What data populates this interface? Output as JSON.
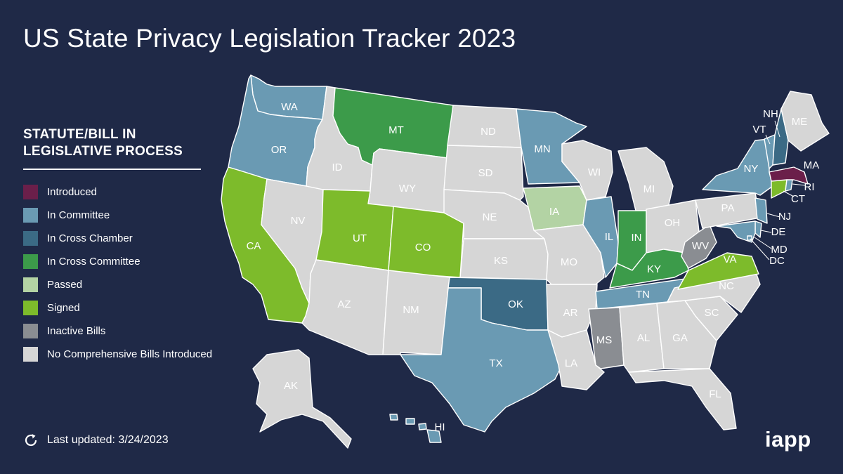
{
  "title": "US State Privacy Legislation Tracker 2023",
  "legend": {
    "heading_line1": "STATUTE/BILL IN",
    "heading_line2": "LEGISLATIVE PROCESS",
    "items": [
      {
        "label": "Introduced",
        "color": "#6b1f4a"
      },
      {
        "label": "In Committee",
        "color": "#6a9ab3"
      },
      {
        "label": "In Cross Chamber",
        "color": "#3b6a85"
      },
      {
        "label": "In Cross Committee",
        "color": "#3c9b4a"
      },
      {
        "label": "Passed",
        "color": "#b3d3a4"
      },
      {
        "label": "Signed",
        "color": "#7dbb2b"
      },
      {
        "label": "Inactive Bills",
        "color": "#8a8d92"
      },
      {
        "label": "No Comprehensive Bills Introduced",
        "color": "#d6d6d6"
      }
    ]
  },
  "footer": {
    "updated": "Last updated: 3/24/2023",
    "logo": "iapp",
    "refresh_icon": "refresh-icon"
  },
  "states": {
    "WA": "In Committee",
    "OR": "In Committee",
    "CA": "Signed",
    "NV": "No Comprehensive Bills Introduced",
    "ID": "No Comprehensive Bills Introduced",
    "MT": "In Cross Committee",
    "WY": "No Comprehensive Bills Introduced",
    "UT": "Signed",
    "CO": "Signed",
    "AZ": "No Comprehensive Bills Introduced",
    "NM": "No Comprehensive Bills Introduced",
    "ND": "No Comprehensive Bills Introduced",
    "SD": "No Comprehensive Bills Introduced",
    "NE": "No Comprehensive Bills Introduced",
    "KS": "No Comprehensive Bills Introduced",
    "OK": "In Cross Chamber",
    "TX": "In Committee",
    "MN": "In Committee",
    "IA": "Passed",
    "MO": "No Comprehensive Bills Introduced",
    "AR": "No Comprehensive Bills Introduced",
    "LA": "No Comprehensive Bills Introduced",
    "WI": "No Comprehensive Bills Introduced",
    "IL": "In Committee",
    "MI": "No Comprehensive Bills Introduced",
    "IN": "In Cross Committee",
    "OH": "No Comprehensive Bills Introduced",
    "KY": "In Cross Committee",
    "TN": "In Committee",
    "MS": "Inactive Bills",
    "AL": "No Comprehensive Bills Introduced",
    "GA": "No Comprehensive Bills Introduced",
    "FL": "No Comprehensive Bills Introduced",
    "SC": "No Comprehensive Bills Introduced",
    "NC": "No Comprehensive Bills Introduced",
    "VA": "Signed",
    "WV": "Inactive Bills",
    "PA": "No Comprehensive Bills Introduced",
    "NY": "In Committee",
    "VT": "In Committee",
    "NH": "In Cross Chamber",
    "ME": "No Comprehensive Bills Introduced",
    "MA": "Introduced",
    "RI": "In Committee",
    "CT": "Signed",
    "NJ": "In Committee",
    "DE": "In Committee",
    "MD": "In Committee",
    "DC": "In Committee",
    "AK": "No Comprehensive Bills Introduced",
    "HI": "In Committee"
  }
}
